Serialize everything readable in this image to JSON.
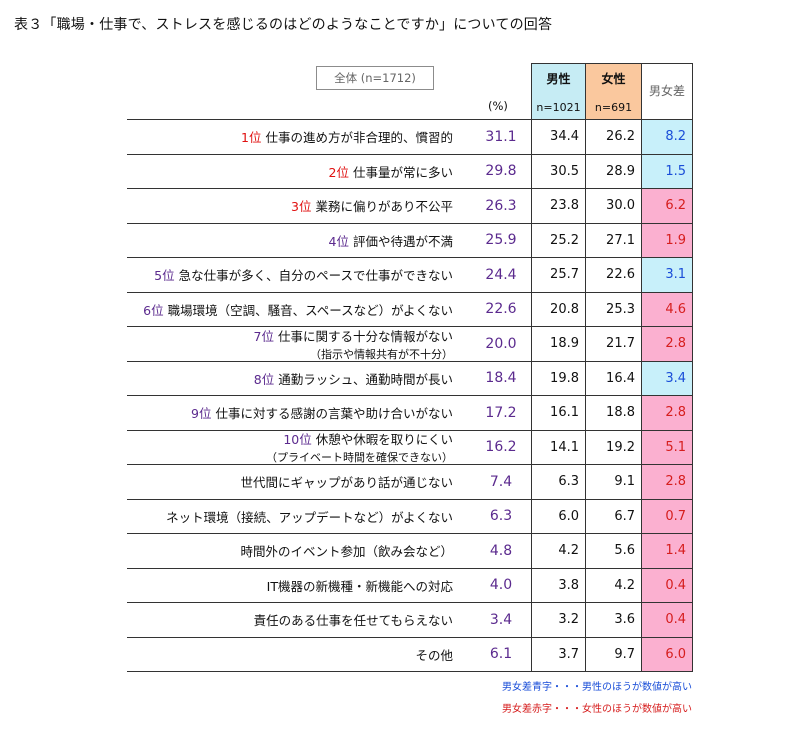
{
  "title": "表３「職場・仕事で、ストレスを感じるのはどのようなことですか」についての回答",
  "total_label": "全体 (n=1712)",
  "pct_label": "(%)",
  "headers": {
    "male": "男性",
    "male_n": "n=1021",
    "female": "女性",
    "female_n": "n=691",
    "diff": "男女差"
  },
  "colors": {
    "male_header_bg": "#c6ecf4",
    "female_header_bg": "#fac89e",
    "diff_blue_bg": "#c8f0fa",
    "diff_pink_bg": "#fbb0d0",
    "rank_red": "#e01010",
    "rank_purple": "#5b2a8e",
    "total_purple": "#5b2a8e"
  },
  "chart_data": {
    "type": "table",
    "columns": [
      "全体",
      "男性",
      "女性",
      "男女差"
    ],
    "rows": [
      {
        "rank": "1位",
        "rank_color": "red",
        "label": "仕事の進め方が非合理的、慣習的",
        "sub": "",
        "total": "31.1",
        "male": "34.4",
        "female": "26.2",
        "diff": "8.2",
        "diff_dir": "male"
      },
      {
        "rank": "2位",
        "rank_color": "red",
        "label": "仕事量が常に多い",
        "sub": "",
        "total": "29.8",
        "male": "30.5",
        "female": "28.9",
        "diff": "1.5",
        "diff_dir": "male"
      },
      {
        "rank": "3位",
        "rank_color": "red",
        "label": "業務に偏りがあり不公平",
        "sub": "",
        "total": "26.3",
        "male": "23.8",
        "female": "30.0",
        "diff": "6.2",
        "diff_dir": "female"
      },
      {
        "rank": "4位",
        "rank_color": "purple",
        "label": "評価や待遇が不満",
        "sub": "",
        "total": "25.9",
        "male": "25.2",
        "female": "27.1",
        "diff": "1.9",
        "diff_dir": "female"
      },
      {
        "rank": "5位",
        "rank_color": "purple",
        "label": "急な仕事が多く、自分のペースで仕事ができない",
        "sub": "",
        "total": "24.4",
        "male": "25.7",
        "female": "22.6",
        "diff": "3.1",
        "diff_dir": "male"
      },
      {
        "rank": "6位",
        "rank_color": "purple",
        "label": "職場環境（空調、騒音、スペースなど）がよくない",
        "sub": "",
        "total": "22.6",
        "male": "20.8",
        "female": "25.3",
        "diff": "4.6",
        "diff_dir": "female"
      },
      {
        "rank": "7位",
        "rank_color": "purple",
        "label": "仕事に関する十分な情報がない",
        "sub": "（指示や情報共有が不十分）",
        "total": "20.0",
        "male": "18.9",
        "female": "21.7",
        "diff": "2.8",
        "diff_dir": "female"
      },
      {
        "rank": "8位",
        "rank_color": "purple",
        "label": "通勤ラッシュ、通勤時間が長い",
        "sub": "",
        "total": "18.4",
        "male": "19.8",
        "female": "16.4",
        "diff": "3.4",
        "diff_dir": "male"
      },
      {
        "rank": "9位",
        "rank_color": "purple",
        "label": "仕事に対する感謝の言葉や助け合いがない",
        "sub": "",
        "total": "17.2",
        "male": "16.1",
        "female": "18.8",
        "diff": "2.8",
        "diff_dir": "female"
      },
      {
        "rank": "10位",
        "rank_color": "purple",
        "label": "休憩や休暇を取りにくい",
        "sub": "（プライベート時間を確保できない）",
        "total": "16.2",
        "male": "14.1",
        "female": "19.2",
        "diff": "5.1",
        "diff_dir": "female"
      },
      {
        "rank": "",
        "rank_color": "",
        "label": "世代間にギャップがあり話が通じない",
        "sub": "",
        "total": "7.4",
        "male": "6.3",
        "female": "9.1",
        "diff": "2.8",
        "diff_dir": "female"
      },
      {
        "rank": "",
        "rank_color": "",
        "label": "ネット環境（接続、アップデートなど）がよくない",
        "sub": "",
        "total": "6.3",
        "male": "6.0",
        "female": "6.7",
        "diff": "0.7",
        "diff_dir": "female"
      },
      {
        "rank": "",
        "rank_color": "",
        "label": "時間外のイベント参加（飲み会など）",
        "sub": "",
        "total": "4.8",
        "male": "4.2",
        "female": "5.6",
        "diff": "1.4",
        "diff_dir": "female"
      },
      {
        "rank": "",
        "rank_color": "",
        "label": "IT機器の新機種・新機能への対応",
        "sub": "",
        "total": "4.0",
        "male": "3.8",
        "female": "4.2",
        "diff": "0.4",
        "diff_dir": "female"
      },
      {
        "rank": "",
        "rank_color": "",
        "label": "責任のある仕事を任せてもらえない",
        "sub": "",
        "total": "3.4",
        "male": "3.2",
        "female": "3.6",
        "diff": "0.4",
        "diff_dir": "female"
      },
      {
        "rank": "",
        "rank_color": "",
        "label": "その他",
        "sub": "",
        "total": "6.1",
        "male": "3.7",
        "female": "9.7",
        "diff": "6.0",
        "diff_dir": "female"
      }
    ]
  },
  "legend": {
    "blue": "男女差青字・・・男性のほうが数値が高い",
    "red": "男女差赤字・・・女性のほうが数値が高い"
  }
}
